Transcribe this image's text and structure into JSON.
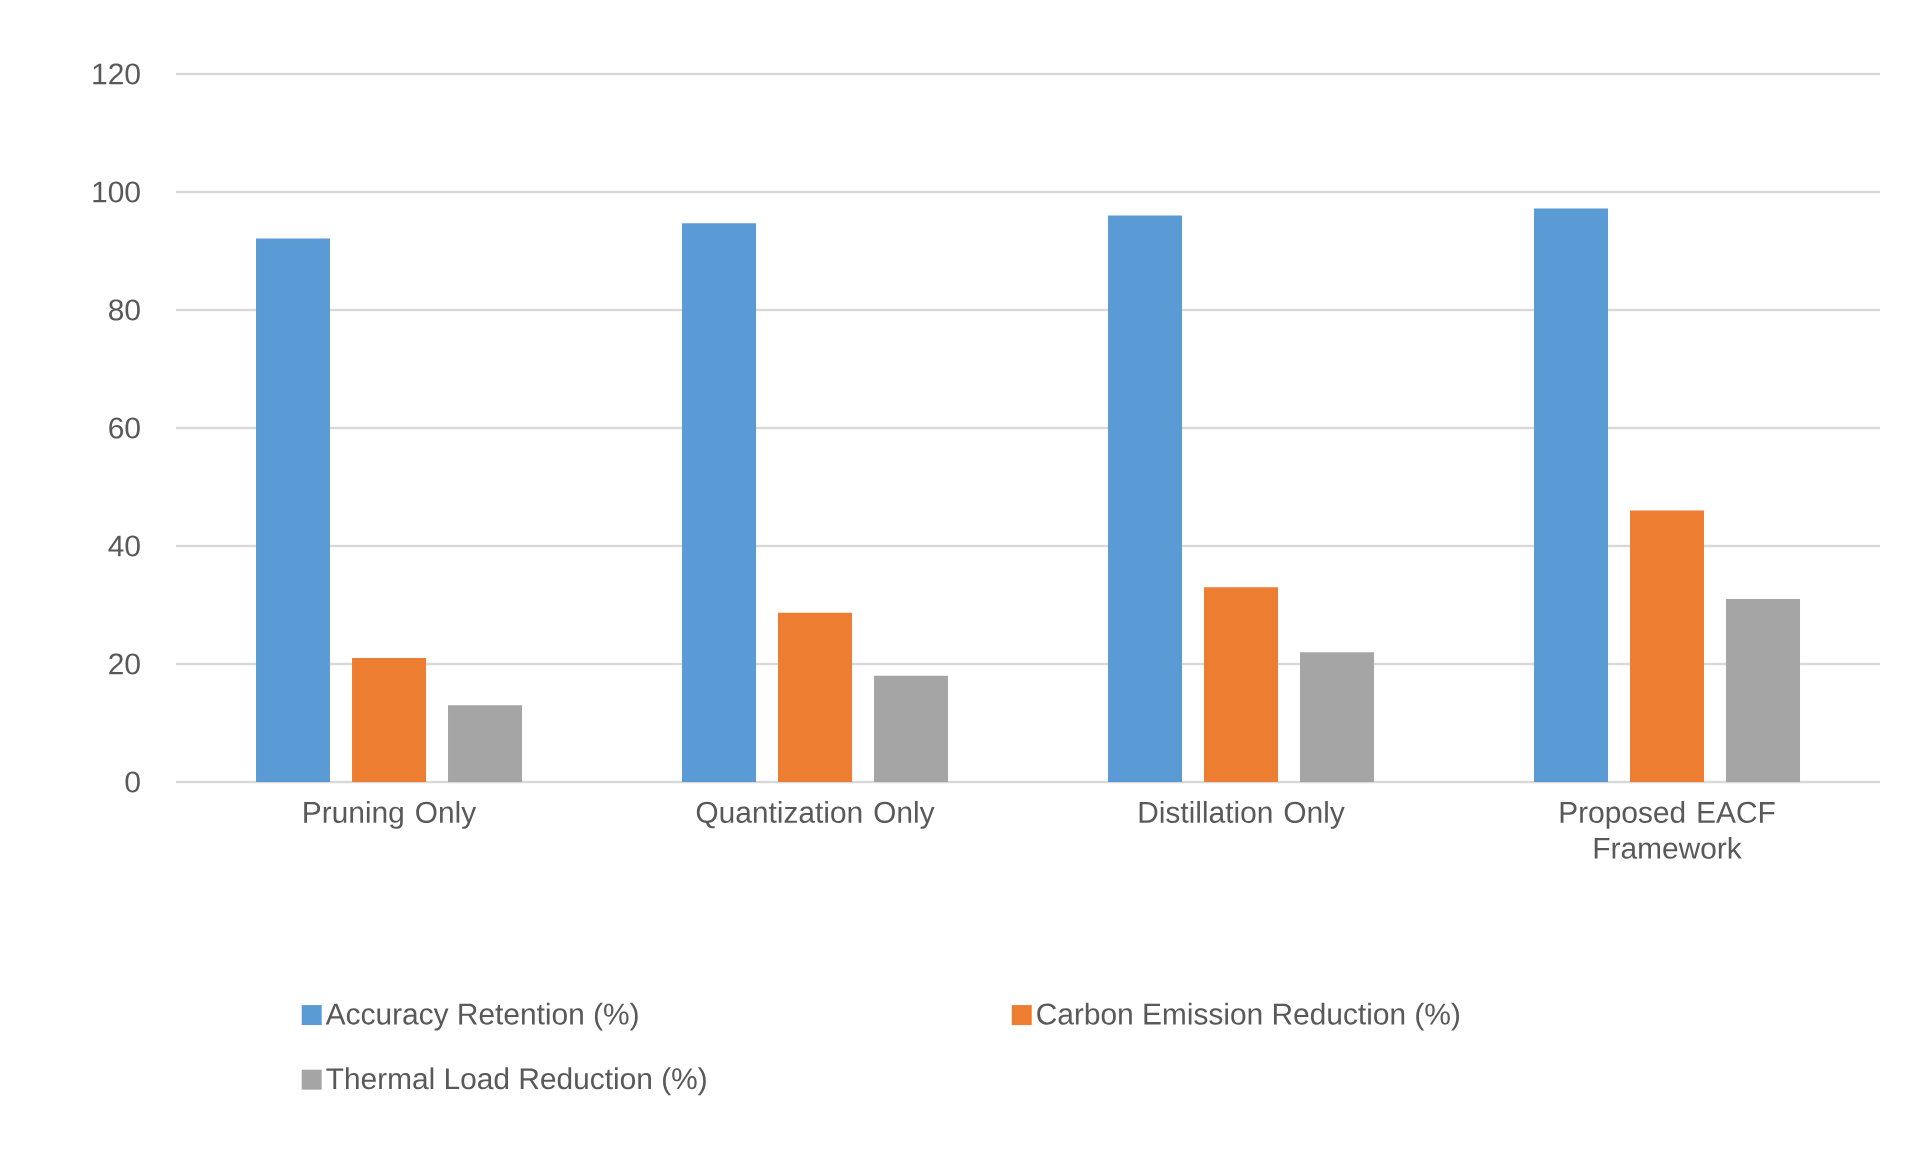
{
  "chart_data": {
    "type": "bar",
    "categories": [
      "Pruning Only",
      "Quantization Only",
      "Distillation Only",
      "Proposed EACF Framework"
    ],
    "series": [
      {
        "name": "Accuracy Retention (%)",
        "color": "#5b9bd5",
        "values": [
          92.1,
          94.7,
          96,
          97.2
        ]
      },
      {
        "name": "Carbon Emission Reduction (%)",
        "color": "#ed7d31",
        "values": [
          21,
          28.7,
          33,
          46
        ]
      },
      {
        "name": "Thermal Load Reduction (%)",
        "color": "#a5a5a5",
        "values": [
          13,
          18,
          22,
          31
        ]
      }
    ],
    "ylim": [
      0,
      120
    ],
    "yticks": [
      0,
      20,
      40,
      60,
      80,
      100,
      120
    ],
    "grid": "y",
    "legend": "bottom"
  }
}
